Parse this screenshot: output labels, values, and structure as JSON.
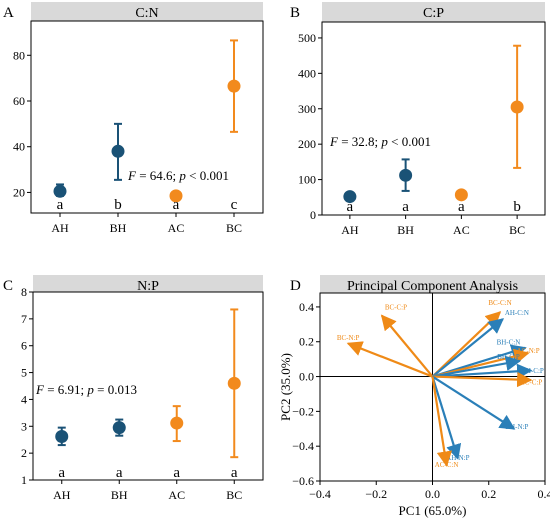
{
  "colors": {
    "H": "#1a5276",
    "C": "#f28a1d",
    "strip": "#d9d9d9",
    "pca_blue": "#2a7fb8",
    "pca_orange": "#ef8a17"
  },
  "chart_data": [
    {
      "type": "scatter",
      "panel": "A",
      "title": "C:N",
      "categories": [
        "AH",
        "BH",
        "AC",
        "BC"
      ],
      "values": [
        20.5,
        38,
        18.5,
        66.5
      ],
      "err_low": [
        18.5,
        25.5,
        18.5,
        46.5
      ],
      "err_high": [
        23.5,
        50,
        18.5,
        86.5
      ],
      "letters": [
        "a",
        "b",
        "a",
        "c"
      ],
      "groups": [
        "H",
        "H",
        "C",
        "C"
      ],
      "stat_text": [
        "F",
        " = 64.6; ",
        "p",
        " < 0.001"
      ],
      "ylim": [
        11,
        95
      ],
      "yticks": [
        20,
        40,
        60,
        80
      ]
    },
    {
      "type": "scatter",
      "panel": "B",
      "title": "C:P",
      "categories": [
        "AH",
        "BH",
        "AC",
        "BC"
      ],
      "values": [
        52,
        112,
        57,
        305
      ],
      "err_low": [
        52,
        68,
        57,
        133
      ],
      "err_high": [
        52,
        157,
        57,
        478
      ],
      "letters": [
        "a",
        "a",
        "a",
        "b"
      ],
      "groups": [
        "H",
        "H",
        "C",
        "C"
      ],
      "stat_text": [
        "F",
        " = 32.8; ",
        "p",
        " < 0.001"
      ],
      "ylim": [
        0,
        545
      ],
      "yticks": [
        0,
        100,
        200,
        300,
        400,
        500
      ]
    },
    {
      "type": "scatter",
      "panel": "C",
      "title": "N:P",
      "categories": [
        "AH",
        "BH",
        "AC",
        "BC"
      ],
      "values": [
        2.62,
        2.95,
        3.12,
        4.6
      ],
      "err_low": [
        2.3,
        2.65,
        2.45,
        1.85
      ],
      "err_high": [
        2.95,
        3.25,
        3.75,
        7.35
      ],
      "letters": [
        "a",
        "a",
        "a",
        "a"
      ],
      "groups": [
        "H",
        "H",
        "C",
        "C"
      ],
      "stat_text": [
        "F",
        " = 6.91; ",
        "p",
        " = 0.013"
      ],
      "ylim": [
        1,
        8
      ],
      "yticks": [
        1,
        2,
        3,
        4,
        5,
        6,
        7,
        8
      ]
    },
    {
      "type": "biplot",
      "panel": "D",
      "title": "Principal Component Analysis",
      "xlabel": "PC1 (65.0%)",
      "ylabel": "PC2 (35.0%)",
      "xlim": [
        -0.4,
        0.4
      ],
      "ylim": [
        -0.6,
        0.48
      ],
      "xticks": [
        -0.4,
        -0.2,
        0.0,
        0.2,
        0.4
      ],
      "xtick_labels": [
        "−0.4",
        "−0.2",
        "0.0",
        "0.2",
        "0.4"
      ],
      "yticks": [
        -0.6,
        -0.4,
        -0.2,
        0.0,
        0.2,
        0.4
      ],
      "ytick_labels": [
        "−0.6",
        "−0.4",
        "−0.2",
        "0.0",
        "0.2",
        "0.4"
      ],
      "vectors": [
        {
          "label": "BC-C:P",
          "x": -0.18,
          "y": 0.35,
          "color": "C",
          "lx": -0.13,
          "ly": 0.385
        },
        {
          "label": "BC-N:P",
          "x": -0.3,
          "y": 0.19,
          "color": "C",
          "lx": -0.3,
          "ly": 0.21
        },
        {
          "label": "BC-C:N",
          "x": 0.24,
          "y": 0.37,
          "color": "C",
          "lx": 0.24,
          "ly": 0.41
        },
        {
          "label": "AH-C:N",
          "x": 0.25,
          "y": 0.33,
          "color": "H",
          "lx": 0.3,
          "ly": 0.355
        },
        {
          "label": "BH-C:N",
          "x": 0.33,
          "y": 0.165,
          "color": "H",
          "lx": 0.27,
          "ly": 0.185
        },
        {
          "label": "AC-N:P",
          "x": 0.34,
          "y": 0.135,
          "color": "C",
          "lx": 0.34,
          "ly": 0.135
        },
        {
          "label": "BH-C:P",
          "x": 0.31,
          "y": 0.09,
          "color": "H",
          "lx": 0.27,
          "ly": 0.1
        },
        {
          "label": "AH-C:P",
          "x": 0.35,
          "y": 0.035,
          "color": "H",
          "lx": 0.355,
          "ly": 0.02
        },
        {
          "label": "AC-C:P",
          "x": 0.35,
          "y": -0.02,
          "color": "C",
          "lx": 0.35,
          "ly": -0.045
        },
        {
          "label": "BH-N:P",
          "x": 0.29,
          "y": -0.3,
          "color": "H",
          "lx": 0.3,
          "ly": -0.3
        },
        {
          "label": "AH-N:P",
          "x": 0.09,
          "y": -0.47,
          "color": "H",
          "lx": 0.09,
          "ly": -0.48
        },
        {
          "label": "AC-C:N",
          "x": 0.05,
          "y": -0.51,
          "color": "C",
          "lx": 0.05,
          "ly": -0.52
        }
      ]
    }
  ]
}
